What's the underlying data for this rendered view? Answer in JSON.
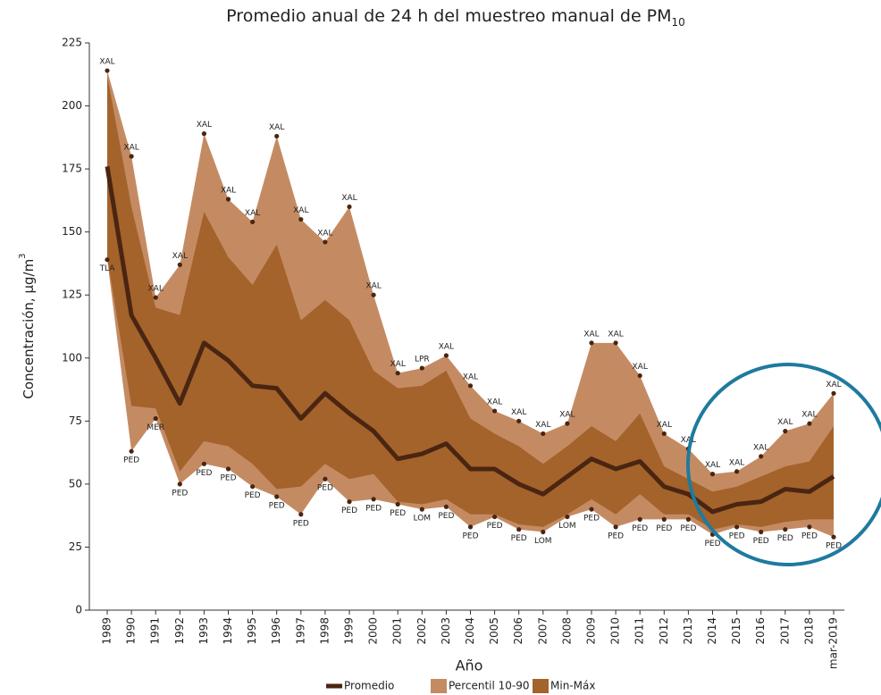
{
  "chart_data": {
    "type": "band-line",
    "title": "Promedio anual de 24 h del muestreo manual de PM",
    "title_subscript": "10",
    "y_label": "Concentración, µg/m",
    "y_label_superscript": "3",
    "x_label": "Año",
    "categories": [
      "1989",
      "1990",
      "1991",
      "1992",
      "1993",
      "1994",
      "1995",
      "1996",
      "1997",
      "1998",
      "1999",
      "2000",
      "2001",
      "2002",
      "2003",
      "2004",
      "2005",
      "2006",
      "2007",
      "2008",
      "2009",
      "2010",
      "2011",
      "2012",
      "2013",
      "2014",
      "2015",
      "2016",
      "2017",
      "2018",
      "mar-2019"
    ],
    "ylim": [
      0,
      225
    ],
    "yticks": [
      0,
      25,
      50,
      75,
      100,
      125,
      150,
      175,
      200,
      225
    ],
    "bands": [
      {
        "name": "Percentil 10-90",
        "color": "#c48b63",
        "high": [
          214,
          180,
          124,
          137,
          189,
          163,
          154,
          188,
          155,
          146,
          160,
          125,
          94,
          96,
          101,
          89,
          79,
          75,
          70,
          74,
          106,
          106,
          93,
          70,
          64,
          54,
          55,
          61,
          71,
          74,
          86
        ],
        "low": [
          139,
          63,
          76,
          50,
          58,
          56,
          49,
          45,
          38,
          52,
          43,
          44,
          42,
          40,
          41,
          33,
          37,
          32,
          31,
          37,
          40,
          33,
          36,
          36,
          36,
          30,
          33,
          31,
          32,
          33,
          29
        ],
        "high_labels": [
          "XAL",
          "XAL",
          "XAL",
          "XAL",
          "XAL",
          "XAL",
          "XAL",
          "XAL",
          "XAL",
          "XAL",
          "XAL",
          "XAL",
          "XAL",
          "LPR",
          "XAL",
          "XAL",
          "XAL",
          "XAL",
          "XAL",
          "XAL",
          "XAL",
          "XAL",
          "XAL",
          "XAL",
          "XAL",
          "XAL",
          "XAL",
          "XAL",
          "XAL",
          "XAL",
          "XAL"
        ],
        "low_labels": [
          "TLA",
          "PED",
          "MER",
          "PED",
          "PED",
          "PED",
          "PED",
          "PED",
          "PED",
          "PED",
          "PED",
          "PED",
          "PED",
          "LOM",
          "PED",
          "PED",
          "PED",
          "PED",
          "LOM",
          "LOM",
          "PED",
          "PED",
          "PED",
          "PED",
          "PED",
          "PED",
          "PED",
          "PED",
          "PED",
          "PED",
          "PED"
        ]
      },
      {
        "name": "Min-Máx",
        "color": "#a4632b",
        "high": [
          212,
          160,
          120,
          117,
          158,
          140,
          129,
          145,
          115,
          123,
          115,
          95,
          88,
          89,
          95,
          76,
          70,
          65,
          58,
          65,
          73,
          67,
          78,
          57,
          52,
          47,
          49,
          53,
          57,
          59,
          73
        ],
        "low": [
          140,
          81,
          80,
          55,
          67,
          65,
          58,
          48,
          49,
          58,
          52,
          54,
          43,
          42,
          44,
          38,
          38,
          34,
          33,
          38,
          44,
          38,
          46,
          38,
          38,
          32,
          34,
          33,
          35,
          36,
          36
        ]
      }
    ],
    "series": [
      {
        "name": "Promedio",
        "color": "#4a2512",
        "values": [
          176,
          117,
          100,
          82,
          106,
          99,
          89,
          88,
          76,
          86,
          78,
          71,
          60,
          62,
          66,
          56,
          56,
          50,
          46,
          53,
          60,
          56,
          59,
          49,
          46,
          39,
          42,
          43,
          48,
          47,
          53
        ]
      }
    ]
  }
}
